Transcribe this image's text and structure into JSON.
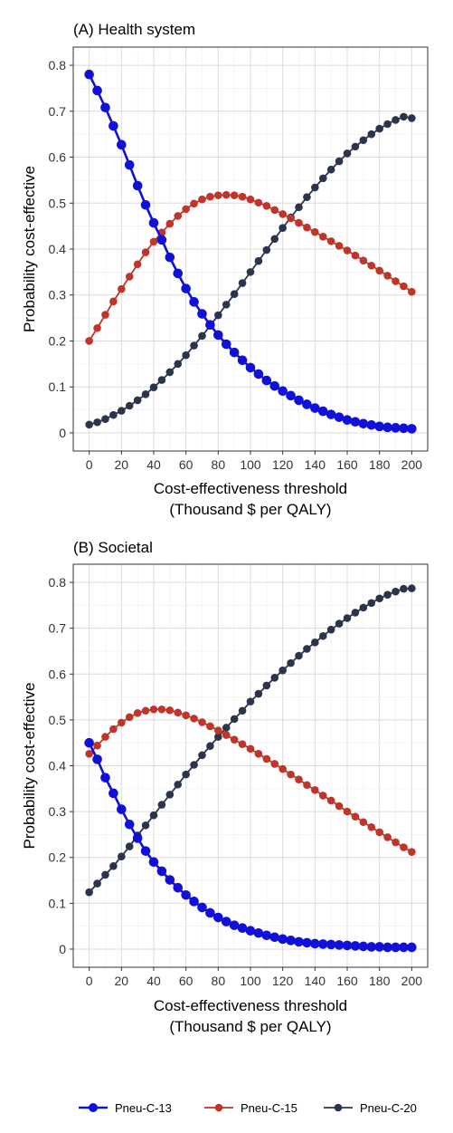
{
  "chart_data": [
    {
      "type": "line",
      "title": "(A) Health system",
      "xlabel": "Cost-effectiveness threshold",
      "xlabel_line2": "(Thousand $ per QALY)",
      "ylabel": "Probability cost-effective",
      "xlim": [
        0,
        200
      ],
      "ylim": [
        0,
        0.8
      ],
      "xticks": [
        "0",
        "20",
        "40",
        "60",
        "80",
        "100",
        "120",
        "140",
        "160",
        "180",
        "200"
      ],
      "yticks": [
        "0",
        "0.1",
        "0.2",
        "0.3",
        "0.4",
        "0.5",
        "0.6",
        "0.7",
        "0.8"
      ],
      "grid": true,
      "x": [
        0,
        5,
        10,
        15,
        20,
        25,
        30,
        35,
        40,
        45,
        50,
        55,
        60,
        65,
        70,
        75,
        80,
        85,
        90,
        95,
        100,
        105,
        110,
        115,
        120,
        125,
        130,
        135,
        140,
        145,
        150,
        155,
        160,
        165,
        170,
        175,
        180,
        185,
        190,
        195,
        200
      ],
      "series": [
        {
          "name": "Pneu-C-13",
          "color": "#1010d8",
          "values": [
            0.78,
            0.745,
            0.708,
            0.668,
            0.627,
            0.583,
            0.538,
            0.496,
            0.457,
            0.42,
            0.382,
            0.347,
            0.314,
            0.285,
            0.259,
            0.235,
            0.213,
            0.193,
            0.175,
            0.158,
            0.142,
            0.128,
            0.114,
            0.102,
            0.091,
            0.081,
            0.071,
            0.062,
            0.054,
            0.047,
            0.04,
            0.034,
            0.028,
            0.024,
            0.02,
            0.017,
            0.014,
            0.012,
            0.011,
            0.01,
            0.009
          ]
        },
        {
          "name": "Pneu-C-15",
          "color": "#c0342a",
          "values": [
            0.2,
            0.228,
            0.257,
            0.286,
            0.313,
            0.34,
            0.367,
            0.393,
            0.416,
            0.436,
            0.455,
            0.472,
            0.487,
            0.499,
            0.508,
            0.514,
            0.517,
            0.518,
            0.517,
            0.514,
            0.508,
            0.501,
            0.494,
            0.485,
            0.476,
            0.467,
            0.457,
            0.447,
            0.437,
            0.427,
            0.417,
            0.407,
            0.397,
            0.386,
            0.375,
            0.364,
            0.353,
            0.342,
            0.33,
            0.319,
            0.307
          ]
        },
        {
          "name": "Pneu-C-20",
          "color": "#2b344a",
          "values": [
            0.018,
            0.023,
            0.03,
            0.039,
            0.048,
            0.059,
            0.071,
            0.084,
            0.099,
            0.115,
            0.132,
            0.15,
            0.169,
            0.19,
            0.211,
            0.233,
            0.256,
            0.279,
            0.302,
            0.326,
            0.35,
            0.374,
            0.398,
            0.422,
            0.446,
            0.469,
            0.491,
            0.513,
            0.534,
            0.554,
            0.573,
            0.591,
            0.608,
            0.623,
            0.637,
            0.65,
            0.662,
            0.672,
            0.681,
            0.688,
            0.685
          ]
        }
      ]
    },
    {
      "type": "line",
      "title": "(B) Societal",
      "xlabel": "Cost-effectiveness threshold",
      "xlabel_line2": "(Thousand $ per QALY)",
      "ylabel": "Probability cost-effective",
      "xlim": [
        0,
        200
      ],
      "ylim": [
        0,
        0.8
      ],
      "xticks": [
        "0",
        "20",
        "40",
        "60",
        "80",
        "100",
        "120",
        "140",
        "160",
        "180",
        "200"
      ],
      "yticks": [
        "0",
        "0.1",
        "0.2",
        "0.3",
        "0.4",
        "0.5",
        "0.6",
        "0.7",
        "0.8"
      ],
      "grid": true,
      "x": [
        0,
        5,
        10,
        15,
        20,
        25,
        30,
        35,
        40,
        45,
        50,
        55,
        60,
        65,
        70,
        75,
        80,
        85,
        90,
        95,
        100,
        105,
        110,
        115,
        120,
        125,
        130,
        135,
        140,
        145,
        150,
        155,
        160,
        165,
        170,
        175,
        180,
        185,
        190,
        195,
        200
      ],
      "series": [
        {
          "name": "Pneu-C-13",
          "color": "#1010d8",
          "values": [
            0.45,
            0.414,
            0.374,
            0.34,
            0.305,
            0.272,
            0.242,
            0.214,
            0.19,
            0.17,
            0.151,
            0.134,
            0.118,
            0.104,
            0.091,
            0.079,
            0.069,
            0.06,
            0.052,
            0.046,
            0.04,
            0.035,
            0.03,
            0.026,
            0.022,
            0.019,
            0.016,
            0.014,
            0.012,
            0.011,
            0.01,
            0.009,
            0.008,
            0.007,
            0.006,
            0.005,
            0.005,
            0.004,
            0.004,
            0.004,
            0.004
          ]
        },
        {
          "name": "Pneu-C-15",
          "color": "#c0342a",
          "values": [
            0.426,
            0.444,
            0.463,
            0.48,
            0.494,
            0.506,
            0.515,
            0.52,
            0.523,
            0.523,
            0.521,
            0.516,
            0.51,
            0.503,
            0.495,
            0.486,
            0.477,
            0.467,
            0.457,
            0.447,
            0.437,
            0.426,
            0.415,
            0.404,
            0.393,
            0.381,
            0.37,
            0.358,
            0.347,
            0.335,
            0.324,
            0.312,
            0.3,
            0.289,
            0.277,
            0.266,
            0.255,
            0.244,
            0.233,
            0.222,
            0.212
          ]
        },
        {
          "name": "Pneu-C-20",
          "color": "#2b344a",
          "values": [
            0.124,
            0.143,
            0.162,
            0.181,
            0.202,
            0.224,
            0.248,
            0.27,
            0.292,
            0.315,
            0.337,
            0.359,
            0.381,
            0.402,
            0.423,
            0.443,
            0.463,
            0.483,
            0.502,
            0.52,
            0.54,
            0.557,
            0.575,
            0.592,
            0.608,
            0.624,
            0.64,
            0.655,
            0.669,
            0.683,
            0.697,
            0.71,
            0.722,
            0.734,
            0.745,
            0.755,
            0.765,
            0.773,
            0.78,
            0.786,
            0.787
          ]
        }
      ]
    }
  ],
  "legend": {
    "placement": "bottom",
    "items": [
      {
        "label": "Pneu-C-13",
        "color": "#1010d8"
      },
      {
        "label": "Pneu-C-15",
        "color": "#c0342a"
      },
      {
        "label": "Pneu-C-20",
        "color": "#2b344a"
      }
    ]
  }
}
